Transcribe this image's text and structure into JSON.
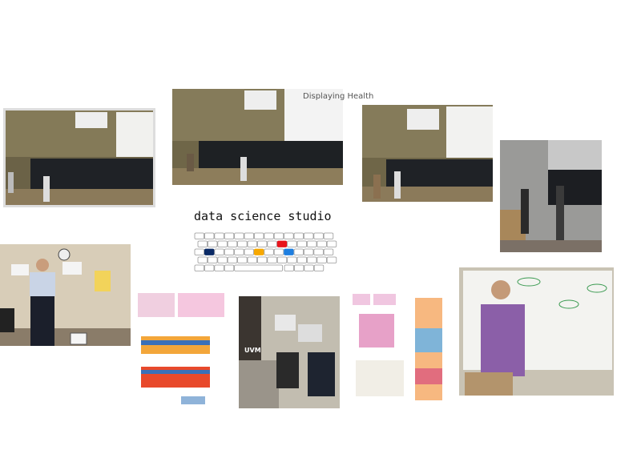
{
  "logo": {
    "title": "data science studio"
  },
  "photo_text": [
    "Displaying Health",
    "UVM"
  ]
}
